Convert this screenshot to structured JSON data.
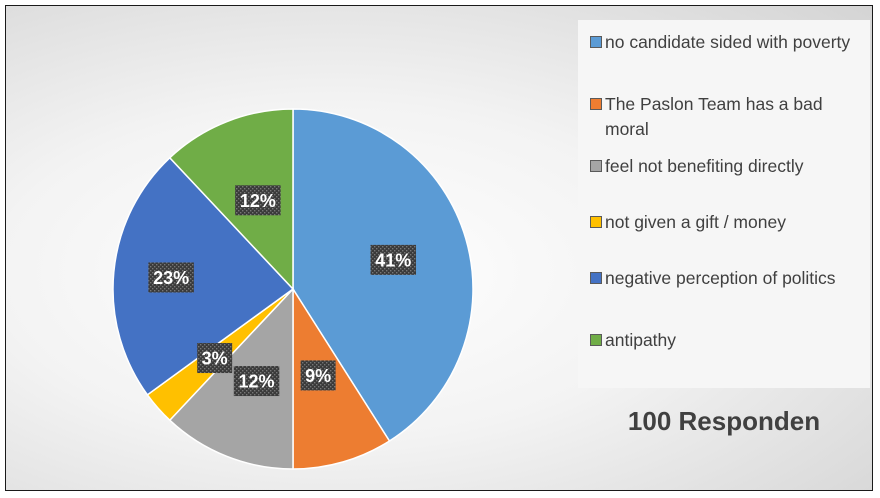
{
  "chart_data": {
    "type": "pie",
    "title": "",
    "slices": [
      {
        "label": "no candidate sided with poverty",
        "value": 41,
        "display": "41%",
        "color": "#5b9bd5"
      },
      {
        "label": "The Paslon Team has a bad moral",
        "value": 9,
        "display": "9%",
        "color": "#ed7d31"
      },
      {
        "label": "feel not benefiting directly",
        "value": 12,
        "display": "12%",
        "color": "#a5a5a5"
      },
      {
        "label": "not given a gift / money",
        "value": 3,
        "display": "3%",
        "color": "#ffc000"
      },
      {
        "label": "negative perception of politics",
        "value": 23,
        "display": "23%",
        "color": "#4472c4"
      },
      {
        "label": "antipathy",
        "value": 12,
        "display": "12%",
        "color": "#70ad47"
      }
    ],
    "legend_position": "right",
    "annotation": "100 Responden"
  }
}
